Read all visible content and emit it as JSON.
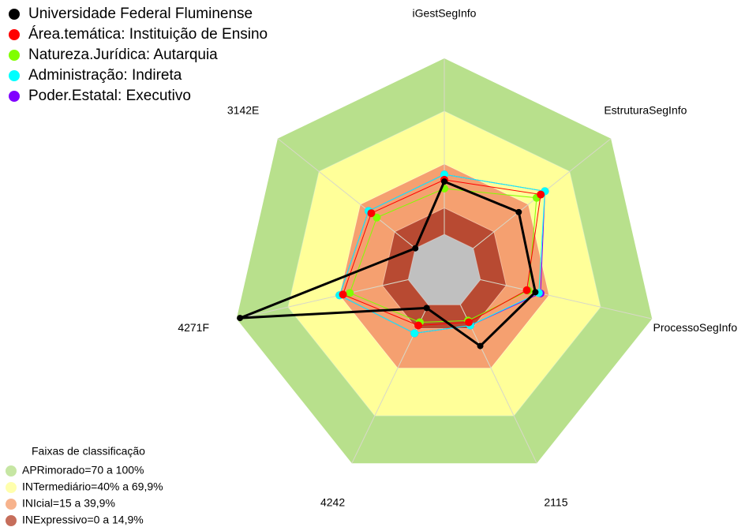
{
  "chart_data": {
    "type": "radar",
    "categories": [
      "iGestSegInfo",
      "EstruturaSegInfo",
      "ProcessoSegInfo",
      "2115",
      "4242",
      "4271F",
      "3142E"
    ],
    "rlim": [
      0,
      100
    ],
    "series": [
      {
        "name": "Universidade Federal Fluminense",
        "color": "#000000",
        "values": [
          30,
          33,
          32,
          26,
          2,
          98,
          0
        ]
      },
      {
        "name": "Área.temática: Instituição de Ensino",
        "color": "#ff0000",
        "values": [
          31,
          49,
          27,
          11,
          13,
          38,
          32
        ]
      },
      {
        "name": "Natureza.Jurídica: Autarquia",
        "color": "#80ff00",
        "values": [
          26,
          46,
          28,
          10,
          11,
          34,
          28
        ]
      },
      {
        "name": "Administração: Indireta",
        "color": "#00ffff",
        "values": [
          34,
          52,
          34,
          13,
          18,
          40,
          34
        ]
      },
      {
        "name": "Poder.Estatal: Executivo",
        "color": "#8000ff",
        "values": [
          34,
          52,
          35,
          13,
          18,
          40,
          34
        ]
      }
    ],
    "bands_title": "Faixas de classificação",
    "bands": [
      {
        "label": "APRimorado=70 a 100%",
        "from": 70,
        "to": 100,
        "color": "#b8e08c"
      },
      {
        "label": "INTermediário=40% a 69,9%",
        "from": 40,
        "to": 69.9,
        "color": "#ffff99"
      },
      {
        "label": "INIcial=15 a 39,9%",
        "from": 15,
        "to": 39.9,
        "color": "#f5a070"
      },
      {
        "label": "INExpressivo=0 a 14,9%",
        "from": 0,
        "to": 14.9,
        "color": "#b84a32"
      }
    ]
  }
}
